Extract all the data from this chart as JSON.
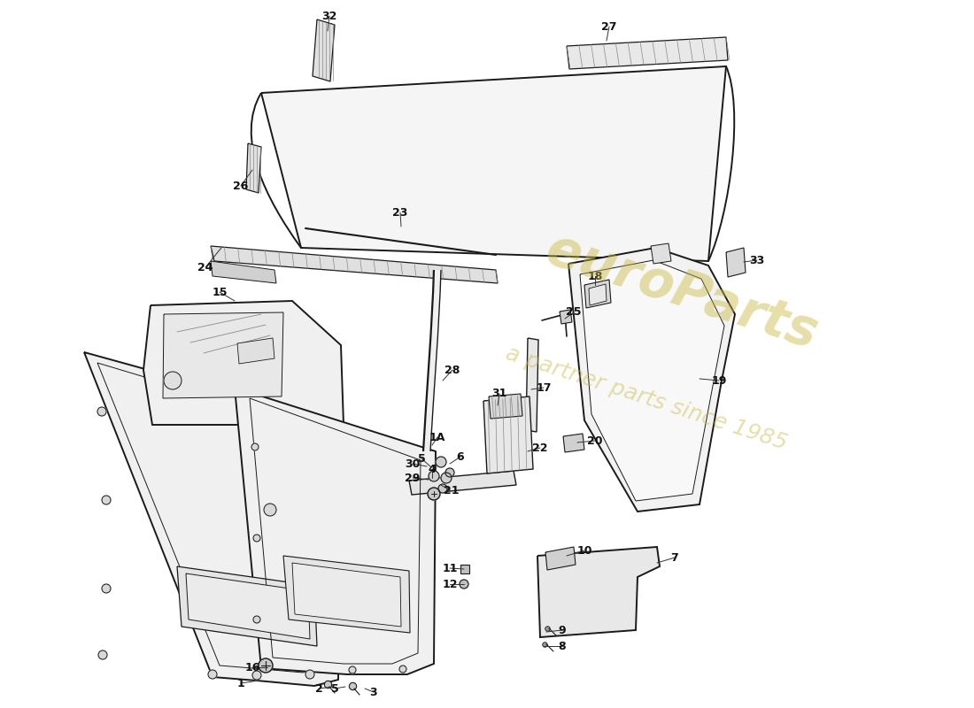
{
  "bg_color": "#ffffff",
  "line_color": "#1a1a1a",
  "lw_main": 1.4,
  "lw_thin": 0.8,
  "watermark_color1": "#c8b840",
  "watermark_color2": "#c8b840",
  "watermark_alpha": 0.45,
  "fill_light": "#f0f0f0",
  "fill_mid": "#e0e0e0",
  "fill_dark": "#d0d0d0",
  "hatch_color": "#999999"
}
